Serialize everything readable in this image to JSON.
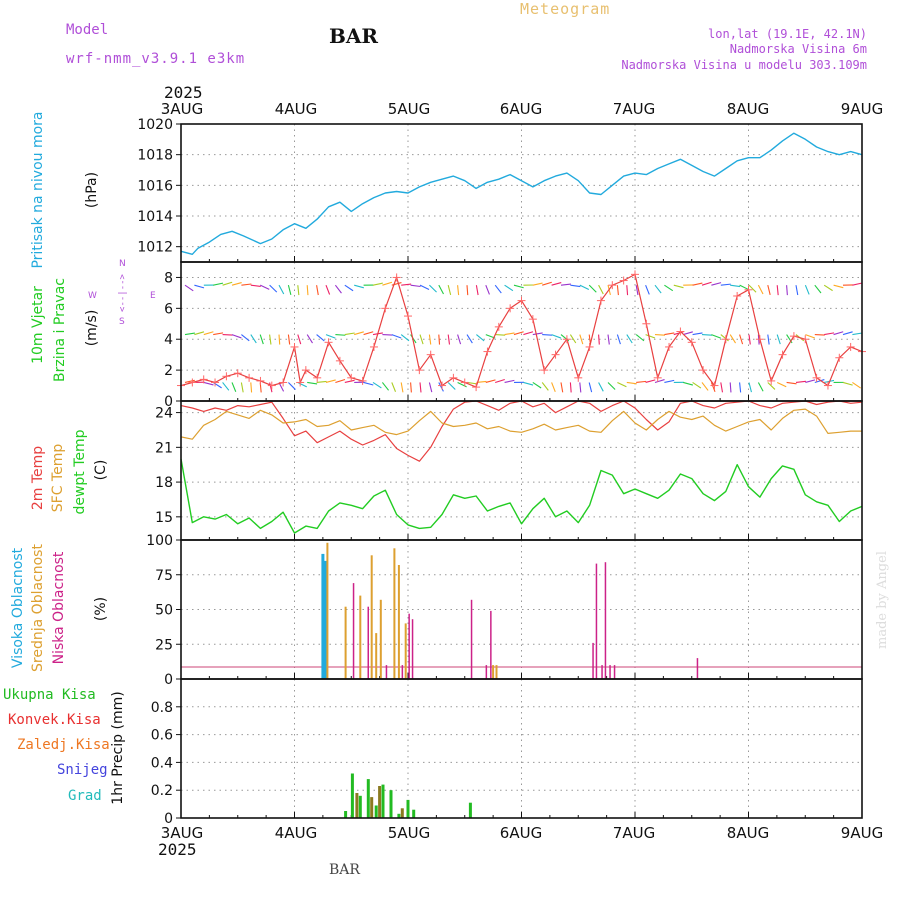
{
  "header": {
    "model_label": "Model",
    "model_name": "wrf-nmm_v3.9.1 e3km",
    "station": "BAR",
    "product": "Meteogram",
    "coords": "lon,lat (19.1E, 42.1N)",
    "elevation": "Nadmorska Visina 6m",
    "model_elevation": "Nadmorska Visina u modelu 303.109m"
  },
  "footer": {
    "station": "BAR",
    "credit": "made by Angel"
  },
  "colors": {
    "pressure": "#22aadd",
    "temp2m": "#e84040",
    "sfc": "#dda030",
    "dewpt": "#22cc22",
    "high_cloud": "#22aadd",
    "mid_cloud": "#dda030",
    "low_cloud": "#cc2288",
    "total": "#22bb22",
    "conv": "#e83030",
    "frz": "#ee7722",
    "snow": "#4444dd",
    "grad": "#22bbbb",
    "violet": "#b04fd8",
    "gold": "#e8c070",
    "grid": "#999999"
  },
  "chart_data": [
    {
      "type": "line",
      "title": "Pritisak na nivou mora",
      "ylabel": "(hPa)",
      "ylim": [
        1011,
        1020
      ],
      "yticks": [
        "1012",
        "1014",
        "1016",
        "1018",
        "1020"
      ],
      "xlim": [
        0,
        6
      ],
      "top_labels": [
        "3AUG",
        "4AUG",
        "5AUG",
        "6AUG",
        "7AUG",
        "8AUG",
        "9AUG"
      ],
      "top_year": "2025",
      "series": [
        {
          "name": "Pritisak",
          "x": [
            0,
            0.1,
            0.15,
            0.25,
            0.35,
            0.45,
            0.55,
            0.7,
            0.8,
            0.9,
            1.0,
            1.1,
            1.2,
            1.3,
            1.4,
            1.5,
            1.6,
            1.7,
            1.8,
            1.9,
            2.0,
            2.1,
            2.2,
            2.3,
            2.4,
            2.5,
            2.6,
            2.7,
            2.8,
            2.9,
            3.0,
            3.1,
            3.2,
            3.3,
            3.4,
            3.5,
            3.6,
            3.7,
            3.8,
            3.9,
            4.0,
            4.1,
            4.2,
            4.3,
            4.4,
            4.5,
            4.6,
            4.7,
            4.8,
            4.9,
            5.0,
            5.1,
            5.2,
            5.3,
            5.4,
            5.5,
            5.6,
            5.7,
            5.8,
            5.9,
            6.0
          ],
          "values": [
            1011.7,
            1011.5,
            1011.9,
            1012.3,
            1012.8,
            1013.0,
            1012.7,
            1012.2,
            1012.5,
            1013.1,
            1013.5,
            1013.2,
            1013.8,
            1014.6,
            1014.9,
            1014.3,
            1014.8,
            1015.2,
            1015.5,
            1015.6,
            1015.5,
            1015.9,
            1016.2,
            1016.4,
            1016.6,
            1016.3,
            1015.8,
            1016.2,
            1016.4,
            1016.7,
            1016.3,
            1015.9,
            1016.3,
            1016.6,
            1016.8,
            1016.3,
            1015.5,
            1015.4,
            1016.0,
            1016.6,
            1016.8,
            1016.7,
            1017.1,
            1017.4,
            1017.7,
            1017.3,
            1016.9,
            1016.6,
            1017.1,
            1017.6,
            1017.8,
            1017.8,
            1018.3,
            1018.9,
            1019.4,
            1019.0,
            1018.5,
            1018.2,
            1018.0,
            1018.2,
            1018.0
          ]
        }
      ]
    },
    {
      "type": "line",
      "title": "10m Vjetar Brzina i Pravac",
      "title_lines": [
        "10m Vjetar",
        "Brzina i Pravac"
      ],
      "ylabel": "(m/s)",
      "ylim": [
        0,
        9
      ],
      "yticks": [
        "0",
        "2",
        "4",
        "6",
        "8"
      ],
      "compass": {
        "w": "W",
        "e": "E",
        "n": "N",
        "s": "S",
        "arrows": "<--|-->"
      },
      "series": [
        {
          "name": "Brzina",
          "x": [
            0,
            0.1,
            0.2,
            0.3,
            0.4,
            0.5,
            0.6,
            0.7,
            0.8,
            0.9,
            1.0,
            1.05,
            1.1,
            1.2,
            1.3,
            1.4,
            1.5,
            1.6,
            1.7,
            1.8,
            1.9,
            2.0,
            2.1,
            2.2,
            2.3,
            2.4,
            2.5,
            2.6,
            2.7,
            2.8,
            2.9,
            3.0,
            3.1,
            3.2,
            3.3,
            3.4,
            3.5,
            3.6,
            3.7,
            3.8,
            3.9,
            4.0,
            4.1,
            4.2,
            4.3,
            4.4,
            4.5,
            4.6,
            4.7,
            4.8,
            4.9,
            5.0,
            5.1,
            5.2,
            5.3,
            5.4,
            5.5,
            5.6,
            5.7,
            5.8,
            5.9,
            6.0
          ],
          "values": [
            1.0,
            1.2,
            1.4,
            1.2,
            1.6,
            1.8,
            1.5,
            1.3,
            1.0,
            1.2,
            3.5,
            1.2,
            2.0,
            1.5,
            3.8,
            2.6,
            1.5,
            1.3,
            3.5,
            6.0,
            8.0,
            5.5,
            2.0,
            3.0,
            1.0,
            1.5,
            1.2,
            0.9,
            3.2,
            4.8,
            6.0,
            6.5,
            5.3,
            2.0,
            3.0,
            4.0,
            1.5,
            3.5,
            6.5,
            7.5,
            7.8,
            8.2,
            5.0,
            1.5,
            3.5,
            4.5,
            3.8,
            2.0,
            1.0,
            4.0,
            6.8,
            7.2,
            4.0,
            1.3,
            3.0,
            4.2,
            4.0,
            1.5,
            1.0,
            2.8,
            3.5,
            3.2
          ]
        }
      ]
    },
    {
      "type": "line",
      "title": "2m Temp / SFC Temp / dewpt Temp",
      "ylabel": "(C)",
      "ylim": [
        13,
        25
      ],
      "yticks": [
        "15",
        "18",
        "21",
        "24"
      ],
      "legend": [
        "2m Temp",
        "SFC Temp",
        "dewpt Temp"
      ],
      "series": [
        {
          "name": "2m Temp",
          "x": [
            0,
            0.1,
            0.2,
            0.3,
            0.4,
            0.5,
            0.6,
            0.7,
            0.8,
            0.9,
            1.0,
            1.1,
            1.2,
            1.3,
            1.4,
            1.5,
            1.6,
            1.7,
            1.8,
            1.9,
            2.0,
            2.1,
            2.2,
            2.3,
            2.4,
            2.5,
            2.6,
            2.7,
            2.8,
            2.9,
            3.0,
            3.1,
            3.2,
            3.3,
            3.4,
            3.5,
            3.6,
            3.7,
            3.8,
            3.9,
            4.0,
            4.1,
            4.2,
            4.3,
            4.4,
            4.5,
            4.6,
            4.7,
            4.8,
            4.9,
            5.0,
            5.1,
            5.2,
            5.3,
            5.4,
            5.5,
            5.6,
            5.7,
            5.8,
            5.9,
            6.0
          ],
          "values": [
            24.6,
            24.4,
            24.1,
            24.4,
            24.2,
            24.6,
            24.5,
            24.7,
            24.9,
            23.5,
            22.0,
            22.4,
            21.4,
            21.9,
            22.4,
            21.7,
            21.2,
            21.6,
            22.1,
            20.9,
            20.3,
            19.8,
            21.0,
            22.8,
            24.3,
            24.9,
            25.0,
            24.6,
            24.2,
            24.8,
            25.0,
            24.5,
            24.8,
            24.0,
            24.5,
            25.0,
            24.8,
            24.1,
            24.6,
            25.0,
            24.4,
            23.4,
            22.5,
            23.2,
            24.8,
            25.0,
            24.6,
            24.4,
            24.8,
            24.9,
            25.0,
            24.6,
            24.4,
            24.8,
            24.9,
            25.0,
            24.7,
            24.9,
            25.0,
            24.8,
            24.9
          ]
        },
        {
          "name": "SFC Temp",
          "x": [
            0,
            0.1,
            0.2,
            0.3,
            0.4,
            0.5,
            0.6,
            0.7,
            0.8,
            0.9,
            1.0,
            1.1,
            1.2,
            1.3,
            1.4,
            1.5,
            1.6,
            1.7,
            1.8,
            1.9,
            2.0,
            2.1,
            2.2,
            2.3,
            2.4,
            2.5,
            2.6,
            2.7,
            2.8,
            2.9,
            3.0,
            3.1,
            3.2,
            3.3,
            3.4,
            3.5,
            3.6,
            3.7,
            3.8,
            3.9,
            4.0,
            4.1,
            4.2,
            4.3,
            4.4,
            4.5,
            4.6,
            4.7,
            4.8,
            4.9,
            5.0,
            5.1,
            5.2,
            5.3,
            5.4,
            5.5,
            5.6,
            5.7,
            5.8,
            5.9,
            6.0
          ],
          "values": [
            21.9,
            21.7,
            22.9,
            23.4,
            24.1,
            23.8,
            23.5,
            24.2,
            23.8,
            23.1,
            23.2,
            23.4,
            22.8,
            22.9,
            23.3,
            22.5,
            22.7,
            22.9,
            22.3,
            22.1,
            22.4,
            23.3,
            24.1,
            23.1,
            22.8,
            22.9,
            23.1,
            22.6,
            22.8,
            22.4,
            22.3,
            22.6,
            23.0,
            22.5,
            22.7,
            22.9,
            22.4,
            22.3,
            23.3,
            24.1,
            23.1,
            22.5,
            23.4,
            24.1,
            23.6,
            23.4,
            23.7,
            22.9,
            22.4,
            22.8,
            23.2,
            23.4,
            22.5,
            23.5,
            24.2,
            24.3,
            23.7,
            22.2,
            22.3,
            22.4,
            22.4
          ]
        },
        {
          "name": "dewpt Temp",
          "x": [
            0,
            0.1,
            0.2,
            0.3,
            0.4,
            0.5,
            0.6,
            0.7,
            0.8,
            0.9,
            1.0,
            1.1,
            1.2,
            1.3,
            1.4,
            1.5,
            1.6,
            1.7,
            1.8,
            1.9,
            2.0,
            2.1,
            2.2,
            2.3,
            2.4,
            2.5,
            2.6,
            2.7,
            2.8,
            2.9,
            3.0,
            3.1,
            3.2,
            3.3,
            3.4,
            3.5,
            3.6,
            3.7,
            3.8,
            3.9,
            4.0,
            4.1,
            4.2,
            4.3,
            4.4,
            4.5,
            4.6,
            4.7,
            4.8,
            4.9,
            5.0,
            5.1,
            5.2,
            5.3,
            5.4,
            5.5,
            5.6,
            5.7,
            5.8,
            5.9,
            6.0
          ],
          "values": [
            20.0,
            14.5,
            15.0,
            14.8,
            15.2,
            14.4,
            14.9,
            14.0,
            14.6,
            15.4,
            13.6,
            14.2,
            14.0,
            15.5,
            16.2,
            16.0,
            15.7,
            16.8,
            17.3,
            15.2,
            14.3,
            14.0,
            14.1,
            15.2,
            16.9,
            16.6,
            16.8,
            15.5,
            15.9,
            16.2,
            14.4,
            15.7,
            16.6,
            15.0,
            15.5,
            14.5,
            16.0,
            19.0,
            18.6,
            17.0,
            17.4,
            17.0,
            16.6,
            17.3,
            18.7,
            18.3,
            17.0,
            16.4,
            17.2,
            19.5,
            17.6,
            16.7,
            18.3,
            19.4,
            19.1,
            16.9,
            16.3,
            16.0,
            14.6,
            15.5,
            15.9
          ]
        }
      ]
    },
    {
      "type": "bar",
      "title": "Visoka / Srednja / Niska Oblacnost",
      "ylabel": "(%)",
      "ylim": [
        0,
        100
      ],
      "yticks": [
        "0",
        "25",
        "50",
        "75",
        "100"
      ],
      "legend": [
        "Visoka Oblacnost",
        "Srednja Oblacnost",
        "Niska Oblacnost"
      ],
      "series": [
        {
          "name": "Visoka Oblacnost",
          "x": [
            1.25,
            1.27
          ],
          "values": [
            90,
            85
          ]
        },
        {
          "name": "Srednja Oblacnost",
          "x": [
            1.29,
            1.45,
            1.58,
            1.68,
            1.72,
            1.76,
            1.88,
            1.92,
            1.98,
            2.75,
            2.78
          ],
          "values": [
            98,
            52,
            60,
            89,
            33,
            57,
            94,
            82,
            40,
            10,
            10
          ]
        },
        {
          "name": "Niska Oblacnost",
          "x": [
            1.52,
            1.65,
            1.81,
            1.95,
            2.01,
            2.04,
            2.56,
            2.69,
            2.73,
            3.63,
            3.66,
            3.71,
            3.74,
            3.78,
            3.82,
            4.55
          ],
          "values": [
            69,
            52,
            10,
            10,
            47,
            43,
            57,
            10,
            49,
            26,
            83,
            10,
            84,
            10,
            10,
            15
          ]
        }
      ]
    },
    {
      "type": "bar",
      "title": "1hr Precip",
      "ylabel": "1hr Precip (mm)",
      "ylim": [
        0,
        1
      ],
      "yticks": [
        "0",
        "0.2",
        "0.4",
        "0.6",
        "0.8"
      ],
      "legend": [
        "Ukupna Kisa",
        "Konvek.Kisa",
        "Zaledj.Kisa",
        "Snijeg",
        "Grad"
      ],
      "bottom_labels": [
        "3AUG",
        "4AUG",
        "5AUG",
        "6AUG",
        "7AUG",
        "8AUG",
        "9AUG"
      ],
      "bottom_year": "2025",
      "series": [
        {
          "name": "Ukupna Kisa",
          "x": [
            1.45,
            1.51,
            1.58,
            1.65,
            1.72,
            1.78,
            1.85,
            1.92,
            2.0,
            2.05,
            2.55
          ],
          "values": [
            0.05,
            0.32,
            0.16,
            0.28,
            0.09,
            0.24,
            0.2,
            0.03,
            0.13,
            0.06,
            0.11
          ]
        },
        {
          "name": "Konvek.Kisa",
          "x": [
            1.55,
            1.68,
            1.75,
            1.95
          ],
          "values": [
            0.18,
            0.15,
            0.23,
            0.07
          ]
        }
      ]
    }
  ]
}
